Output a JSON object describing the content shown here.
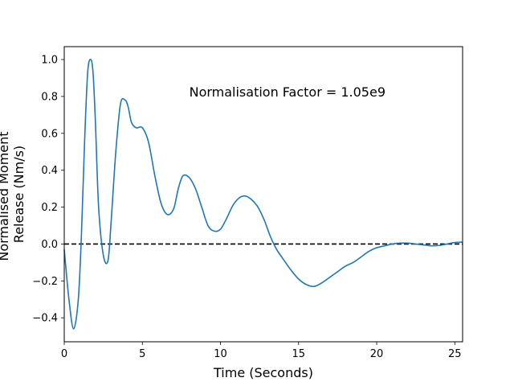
{
  "chart_data": {
    "type": "line",
    "xlabel": "Time (Seconds)",
    "ylabel_lines": [
      "Normalised Moment",
      "Release (Nm/s)"
    ],
    "annotation": "Normalisation Factor = 1.05e9",
    "xlim": [
      0,
      25.5
    ],
    "ylim": [
      -0.53,
      1.07
    ],
    "xticks": [
      0,
      5,
      10,
      15,
      20,
      25
    ],
    "yticks": [
      -0.4,
      -0.2,
      0.0,
      0.2,
      0.4,
      0.6,
      0.8,
      1.0
    ],
    "xtick_labels": [
      "0",
      "5",
      "10",
      "15",
      "20",
      "25"
    ],
    "ytick_labels": [
      "−0.4",
      "−0.2",
      "0.0",
      "0.2",
      "0.4",
      "0.6",
      "0.8",
      "1.0"
    ],
    "series": [
      {
        "color": "#1f77b4",
        "x": [
          0,
          0.3,
          0.6,
          0.9,
          1.1,
          1.3,
          1.5,
          1.7,
          1.85,
          2.0,
          2.2,
          2.5,
          2.8,
          3.0,
          3.3,
          3.6,
          3.9,
          4.1,
          4.3,
          4.6,
          5.0,
          5.4,
          5.8,
          6.2,
          6.6,
          7.0,
          7.3,
          7.6,
          8.0,
          8.4,
          8.8,
          9.2,
          9.6,
          10.0,
          10.4,
          10.8,
          11.2,
          11.6,
          12.0,
          12.4,
          12.8,
          13.2,
          13.6,
          14.0,
          14.5,
          15.0,
          15.5,
          16.0,
          16.5,
          17.0,
          17.5,
          18.0,
          18.5,
          19.0,
          19.5,
          20.0,
          20.5,
          21.0,
          21.5,
          22.0,
          22.5,
          23.0,
          23.5,
          24.0,
          24.5,
          25.0,
          25.5
        ],
        "y": [
          -0.03,
          -0.3,
          -0.46,
          -0.3,
          0.05,
          0.55,
          0.93,
          1.0,
          0.92,
          0.65,
          0.2,
          -0.06,
          -0.09,
          0.12,
          0.5,
          0.76,
          0.78,
          0.74,
          0.66,
          0.63,
          0.63,
          0.55,
          0.37,
          0.22,
          0.16,
          0.19,
          0.3,
          0.37,
          0.36,
          0.3,
          0.2,
          0.1,
          0.07,
          0.08,
          0.14,
          0.21,
          0.25,
          0.26,
          0.24,
          0.2,
          0.13,
          0.04,
          -0.03,
          -0.08,
          -0.14,
          -0.19,
          -0.22,
          -0.23,
          -0.21,
          -0.18,
          -0.15,
          -0.12,
          -0.1,
          -0.07,
          -0.04,
          -0.02,
          -0.01,
          0.0,
          0.005,
          0.005,
          0.0,
          -0.005,
          -0.01,
          -0.008,
          0.0,
          0.008,
          0.01
        ]
      }
    ],
    "reference_line": {
      "y": 0.0,
      "style": "dashed",
      "color": "#000000"
    }
  }
}
